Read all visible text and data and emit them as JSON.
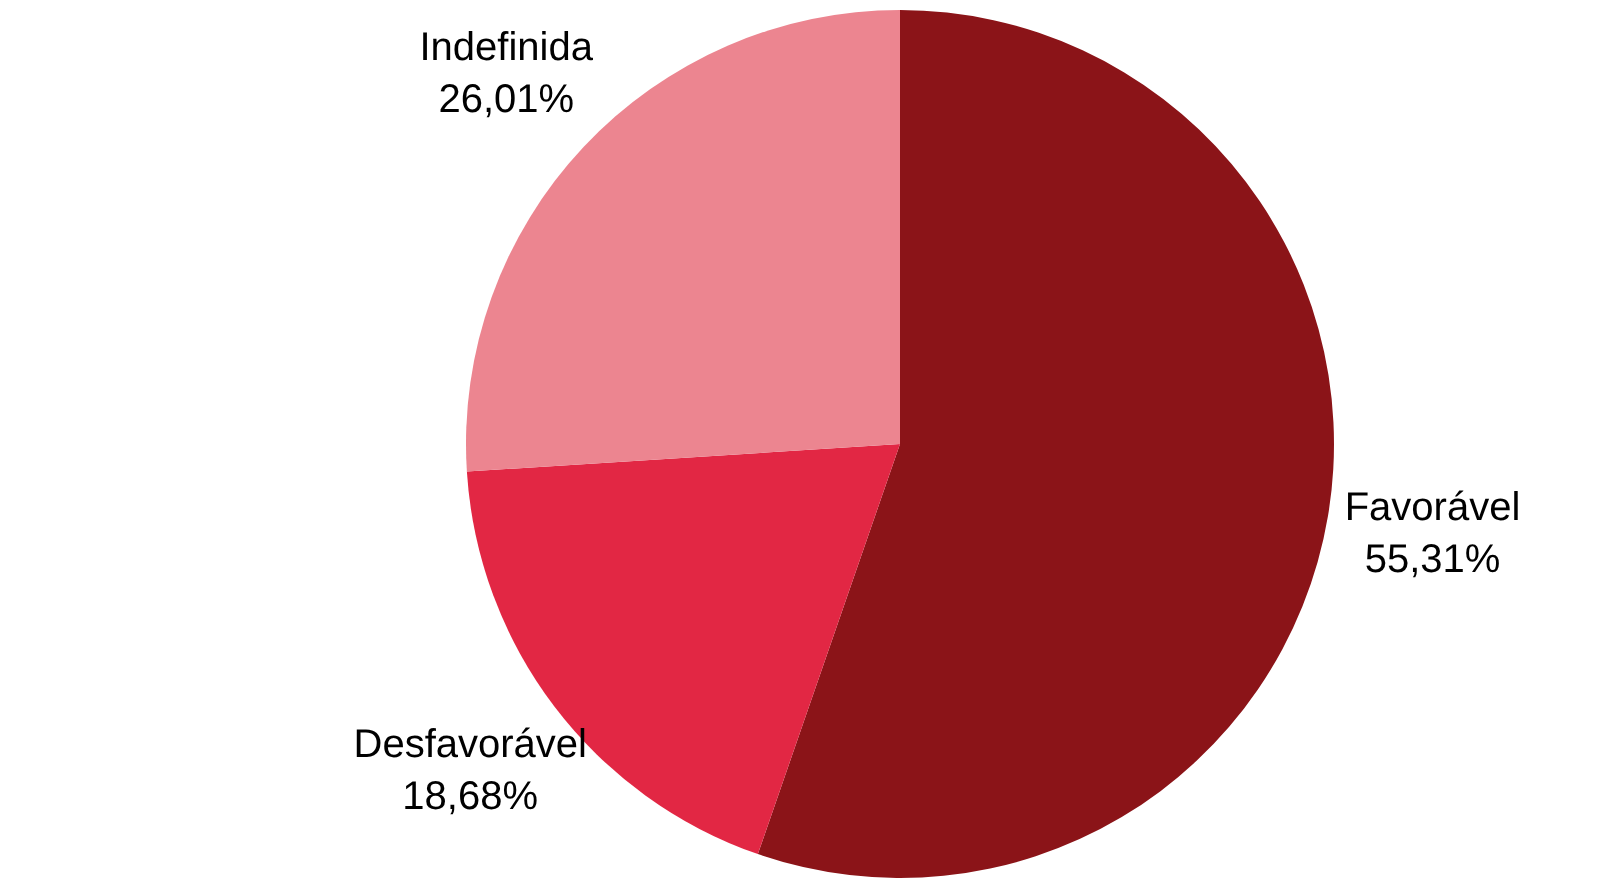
{
  "chart_data": {
    "type": "pie",
    "categories": [
      "Favorável",
      "Desfavorável",
      "Indefinida"
    ],
    "values": [
      55.31,
      18.68,
      26.01
    ],
    "colors": [
      "#8b1418",
      "#e22744",
      "#ec8590"
    ],
    "value_labels": [
      "55,31%",
      "18,68%",
      "26,01%"
    ]
  }
}
